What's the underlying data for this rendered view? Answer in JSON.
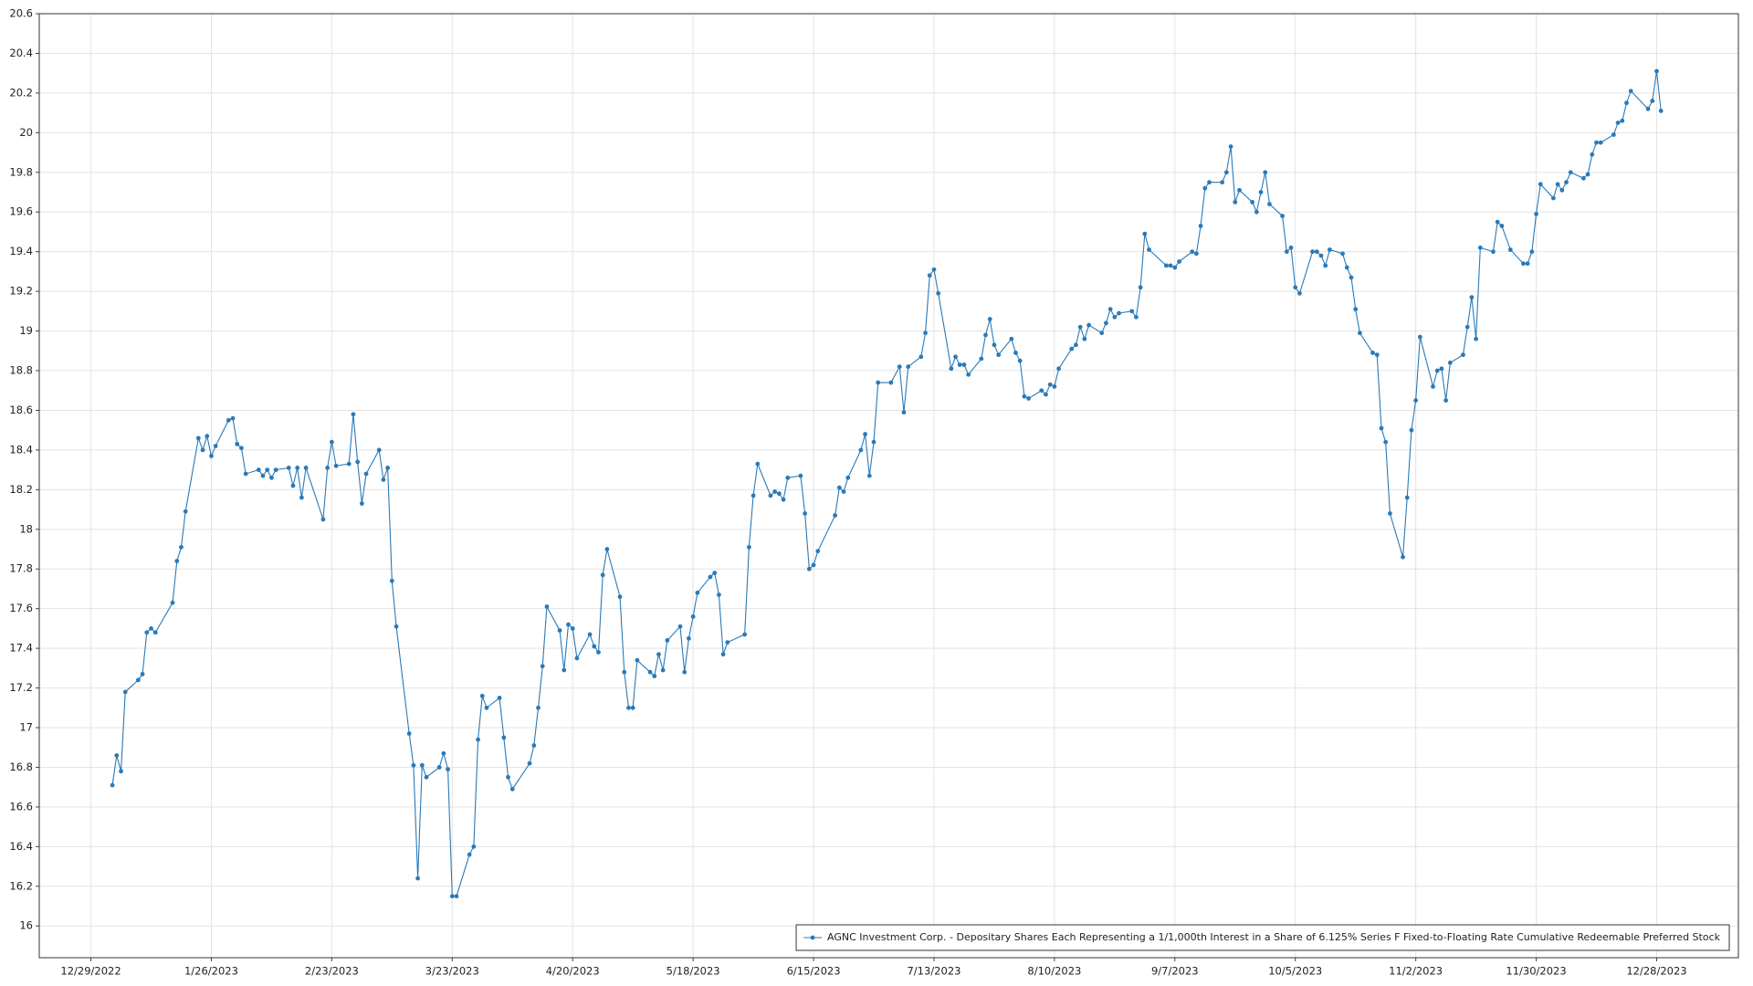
{
  "chart_data": {
    "type": "line",
    "x": [
      "1/3/2023",
      "1/4/2023",
      "1/5/2023",
      "1/6/2023",
      "1/9/2023",
      "1/10/2023",
      "1/11/2023",
      "1/12/2023",
      "1/13/2023",
      "1/17/2023",
      "1/18/2023",
      "1/19/2023",
      "1/20/2023",
      "1/23/2023",
      "1/24/2023",
      "1/25/2023",
      "1/26/2023",
      "1/27/2023",
      "1/30/2023",
      "1/31/2023",
      "2/1/2023",
      "2/2/2023",
      "2/3/2023",
      "2/6/2023",
      "2/7/2023",
      "2/8/2023",
      "2/9/2023",
      "2/10/2023",
      "2/13/2023",
      "2/14/2023",
      "2/15/2023",
      "2/16/2023",
      "2/17/2023",
      "2/21/2023",
      "2/22/2023",
      "2/23/2023",
      "2/24/2023",
      "2/27/2023",
      "2/28/2023",
      "3/1/2023",
      "3/2/2023",
      "3/3/2023",
      "3/6/2023",
      "3/7/2023",
      "3/8/2023",
      "3/9/2023",
      "3/10/2023",
      "3/13/2023",
      "3/14/2023",
      "3/15/2023",
      "3/16/2023",
      "3/17/2023",
      "3/20/2023",
      "3/21/2023",
      "3/22/2023",
      "3/23/2023",
      "3/24/2023",
      "3/27/2023",
      "3/28/2023",
      "3/29/2023",
      "3/30/2023",
      "3/31/2023",
      "4/3/2023",
      "4/4/2023",
      "4/5/2023",
      "4/6/2023",
      "4/10/2023",
      "4/11/2023",
      "4/12/2023",
      "4/13/2023",
      "4/14/2023",
      "4/17/2023",
      "4/18/2023",
      "4/19/2023",
      "4/20/2023",
      "4/21/2023",
      "4/24/2023",
      "4/25/2023",
      "4/26/2023",
      "4/27/2023",
      "4/28/2023",
      "5/1/2023",
      "5/2/2023",
      "5/3/2023",
      "5/4/2023",
      "5/5/2023",
      "5/8/2023",
      "5/9/2023",
      "5/10/2023",
      "5/11/2023",
      "5/12/2023",
      "5/15/2023",
      "5/16/2023",
      "5/17/2023",
      "5/18/2023",
      "5/19/2023",
      "5/22/2023",
      "5/23/2023",
      "5/24/2023",
      "5/25/2023",
      "5/26/2023",
      "5/30/2023",
      "5/31/2023",
      "6/1/2023",
      "6/2/2023",
      "6/5/2023",
      "6/6/2023",
      "6/7/2023",
      "6/8/2023",
      "6/9/2023",
      "6/12/2023",
      "6/13/2023",
      "6/14/2023",
      "6/15/2023",
      "6/16/2023",
      "6/20/2023",
      "6/21/2023",
      "6/22/2023",
      "6/23/2023",
      "6/26/2023",
      "6/27/2023",
      "6/28/2023",
      "6/29/2023",
      "6/30/2023",
      "7/3/2023",
      "7/5/2023",
      "7/6/2023",
      "7/7/2023",
      "7/10/2023",
      "7/11/2023",
      "7/12/2023",
      "7/13/2023",
      "7/14/2023",
      "7/17/2023",
      "7/18/2023",
      "7/19/2023",
      "7/20/2023",
      "7/21/2023",
      "7/24/2023",
      "7/25/2023",
      "7/26/2023",
      "7/27/2023",
      "7/28/2023",
      "7/31/2023",
      "8/1/2023",
      "8/2/2023",
      "8/3/2023",
      "8/4/2023",
      "8/7/2023",
      "8/8/2023",
      "8/9/2023",
      "8/10/2023",
      "8/11/2023",
      "8/14/2023",
      "8/15/2023",
      "8/16/2023",
      "8/17/2023",
      "8/18/2023",
      "8/21/2023",
      "8/22/2023",
      "8/23/2023",
      "8/24/2023",
      "8/25/2023",
      "8/28/2023",
      "8/29/2023",
      "8/30/2023",
      "8/31/2023",
      "9/1/2023",
      "9/5/2023",
      "9/6/2023",
      "9/7/2023",
      "9/8/2023",
      "9/11/2023",
      "9/12/2023",
      "9/13/2023",
      "9/14/2023",
      "9/15/2023",
      "9/18/2023",
      "9/19/2023",
      "9/20/2023",
      "9/21/2023",
      "9/22/2023",
      "9/25/2023",
      "9/26/2023",
      "9/27/2023",
      "9/28/2023",
      "9/29/2023",
      "10/2/2023",
      "10/3/2023",
      "10/4/2023",
      "10/5/2023",
      "10/6/2023",
      "10/9/2023",
      "10/10/2023",
      "10/11/2023",
      "10/12/2023",
      "10/13/2023",
      "10/16/2023",
      "10/17/2023",
      "10/18/2023",
      "10/19/2023",
      "10/20/2023",
      "10/23/2023",
      "10/24/2023",
      "10/25/2023",
      "10/26/2023",
      "10/27/2023",
      "10/30/2023",
      "10/31/2023",
      "11/1/2023",
      "11/2/2023",
      "11/3/2023",
      "11/6/2023",
      "11/7/2023",
      "11/8/2023",
      "11/9/2023",
      "11/10/2023",
      "11/13/2023",
      "11/14/2023",
      "11/15/2023",
      "11/16/2023",
      "11/17/2023",
      "11/20/2023",
      "11/21/2023",
      "11/22/2023",
      "11/24/2023",
      "11/27/2023",
      "11/28/2023",
      "11/29/2023",
      "11/30/2023",
      "12/1/2023",
      "12/4/2023",
      "12/5/2023",
      "12/6/2023",
      "12/7/2023",
      "12/8/2023",
      "12/11/2023",
      "12/12/2023",
      "12/13/2023",
      "12/14/2023",
      "12/15/2023",
      "12/18/2023",
      "12/19/2023",
      "12/20/2023",
      "12/21/2023",
      "12/22/2023",
      "12/26/2023",
      "12/27/2023",
      "12/28/2023",
      "12/29/2023"
    ],
    "series": [
      {
        "name": "AGNC Investment Corp. - Depositary Shares Each Representing a 1/1,000th Interest in a Share of 6.125% Series F Fixed-to-Floating Rate Cumulative Redeemable Preferred Stock",
        "color": "#2a7ab8",
        "values": [
          16.71,
          16.86,
          16.78,
          17.18,
          17.24,
          17.27,
          17.48,
          17.5,
          17.48,
          17.63,
          17.84,
          17.91,
          18.09,
          18.46,
          18.4,
          18.47,
          18.37,
          18.42,
          18.55,
          18.56,
          18.43,
          18.41,
          18.28,
          18.3,
          18.27,
          18.3,
          18.26,
          18.3,
          18.31,
          18.22,
          18.31,
          18.16,
          18.31,
          18.05,
          18.31,
          18.44,
          18.32,
          18.33,
          18.58,
          18.34,
          18.13,
          18.28,
          18.4,
          18.25,
          18.31,
          17.74,
          17.51,
          16.97,
          16.81,
          16.24,
          16.81,
          16.75,
          16.8,
          16.87,
          16.79,
          16.15,
          16.15,
          16.36,
          16.4,
          16.94,
          17.16,
          17.1,
          17.15,
          16.95,
          16.75,
          16.69,
          16.82,
          16.91,
          17.1,
          17.31,
          17.61,
          17.49,
          17.29,
          17.52,
          17.5,
          17.35,
          17.47,
          17.41,
          17.38,
          17.77,
          17.9,
          17.66,
          17.28,
          17.1,
          17.1,
          17.34,
          17.28,
          17.26,
          17.37,
          17.29,
          17.44,
          17.51,
          17.28,
          17.45,
          17.56,
          17.68,
          17.76,
          17.78,
          17.67,
          17.37,
          17.43,
          17.47,
          17.91,
          18.17,
          18.33,
          18.17,
          18.19,
          18.18,
          18.15,
          18.26,
          18.27,
          18.08,
          17.8,
          17.82,
          17.89,
          18.07,
          18.21,
          18.19,
          18.26,
          18.4,
          18.48,
          18.27,
          18.44,
          18.74,
          18.74,
          18.82,
          18.59,
          18.82,
          18.87,
          18.99,
          19.28,
          19.31,
          19.19,
          18.81,
          18.87,
          18.83,
          18.83,
          18.78,
          18.86,
          18.98,
          19.06,
          18.93,
          18.88,
          18.96,
          18.89,
          18.85,
          18.67,
          18.66,
          18.7,
          18.68,
          18.73,
          18.72,
          18.81,
          18.91,
          18.93,
          19.02,
          18.96,
          19.03,
          18.99,
          19.04,
          19.11,
          19.07,
          19.09,
          19.1,
          19.07,
          19.22,
          19.49,
          19.41,
          19.33,
          19.33,
          19.32,
          19.35,
          19.4,
          19.39,
          19.53,
          19.72,
          19.75,
          19.75,
          19.8,
          19.93,
          19.65,
          19.71,
          19.65,
          19.6,
          19.7,
          19.8,
          19.64,
          19.58,
          19.4,
          19.42,
          19.22,
          19.19,
          19.4,
          19.4,
          19.38,
          19.33,
          19.41,
          19.39,
          19.32,
          19.27,
          19.11,
          18.99,
          18.89,
          18.88,
          18.51,
          18.44,
          18.08,
          17.86,
          18.16,
          18.5,
          18.65,
          18.97,
          18.72,
          18.8,
          18.81,
          18.65,
          18.84,
          18.88,
          19.02,
          19.17,
          18.96,
          19.42,
          19.4,
          19.55,
          19.53,
          19.41,
          19.34,
          19.34,
          19.4,
          19.59,
          19.74,
          19.67,
          19.74,
          19.71,
          19.75,
          19.8,
          19.77,
          19.79,
          19.89,
          19.95,
          19.95,
          19.99,
          20.05,
          20.06,
          20.15,
          20.21,
          20.12,
          20.16,
          20.31,
          20.11
        ]
      }
    ],
    "xlim": [
      "12/17/2022",
      "1/16/2024"
    ],
    "xticks": [
      "12/29/2022",
      "1/26/2023",
      "2/23/2023",
      "3/23/2023",
      "4/20/2023",
      "5/18/2023",
      "6/15/2023",
      "7/13/2023",
      "8/10/2023",
      "9/7/2023",
      "10/5/2023",
      "11/2/2023",
      "11/30/2023",
      "12/28/2023"
    ],
    "ylim": [
      15.84,
      20.6
    ],
    "yticks": [
      16,
      16.2,
      16.4,
      16.6,
      16.8,
      17,
      17.2,
      17.4,
      17.6,
      17.8,
      18,
      18.2,
      18.4,
      18.6,
      18.8,
      19,
      19.2,
      19.4,
      19.6,
      19.8,
      20,
      20.2,
      20.4,
      20.6
    ],
    "grid": true,
    "legend": "lower right"
  }
}
